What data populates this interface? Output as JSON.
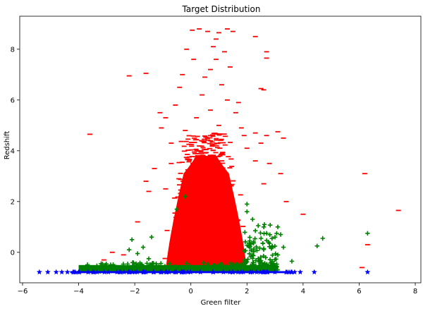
{
  "chart_data": {
    "type": "scatter",
    "title": "Target Distribution",
    "xlabel": "Green filter",
    "ylabel": "Redshift",
    "xlim": [
      -6.1,
      8.2
    ],
    "ylim": [
      -1.2,
      9.3
    ],
    "xticks": [
      -6,
      -4,
      -2,
      0,
      2,
      4,
      6,
      8
    ],
    "yticks": [
      0,
      2,
      4,
      6,
      8
    ],
    "grid": false,
    "series": [
      {
        "marker": "dash",
        "color": "#ff0000",
        "core_region": {
          "x_range": [
            -0.9,
            2.0
          ],
          "y_range": [
            -0.8,
            3.8
          ]
        },
        "points": [
          [
            -2.2,
            6.95
          ],
          [
            -1.6,
            7.05
          ],
          [
            -3.6,
            4.65
          ],
          [
            -1.1,
            5.5
          ],
          [
            -1.05,
            4.9
          ],
          [
            -1.6,
            2.8
          ],
          [
            -1.5,
            2.4
          ],
          [
            -2.8,
            0.0
          ],
          [
            -3.1,
            -0.3
          ],
          [
            -0.4,
            6.5
          ],
          [
            -0.3,
            7.0
          ],
          [
            -0.15,
            8.0
          ],
          [
            0.05,
            8.75
          ],
          [
            0.3,
            8.8
          ],
          [
            0.6,
            8.7
          ],
          [
            1.0,
            8.65
          ],
          [
            1.3,
            8.8
          ],
          [
            1.5,
            8.7
          ],
          [
            0.8,
            8.1
          ],
          [
            1.2,
            7.9
          ],
          [
            0.9,
            7.6
          ],
          [
            0.7,
            7.2
          ],
          [
            1.4,
            7.3
          ],
          [
            0.5,
            6.9
          ],
          [
            1.1,
            6.6
          ],
          [
            0.4,
            6.2
          ],
          [
            1.3,
            6.0
          ],
          [
            0.7,
            5.6
          ],
          [
            1.6,
            5.5
          ],
          [
            0.2,
            5.3
          ],
          [
            1.0,
            5.0
          ],
          [
            1.8,
            4.9
          ],
          [
            -0.2,
            4.8
          ],
          [
            1.9,
            4.6
          ],
          [
            2.3,
            4.7
          ],
          [
            2.7,
            4.6
          ],
          [
            3.1,
            4.75
          ],
          [
            3.3,
            4.5
          ],
          [
            2.5,
            4.3
          ],
          [
            2.8,
            3.5
          ],
          [
            3.2,
            3.1
          ],
          [
            2.6,
            2.7
          ],
          [
            3.4,
            2.0
          ],
          [
            4.0,
            1.5
          ],
          [
            6.3,
            0.3
          ],
          [
            6.2,
            3.1
          ],
          [
            7.4,
            1.65
          ],
          [
            6.1,
            -0.6
          ],
          [
            2.7,
            7.9
          ],
          [
            2.3,
            8.5
          ],
          [
            2.6,
            6.4
          ],
          [
            2.7,
            7.65
          ],
          [
            2.5,
            6.45
          ],
          [
            -0.7,
            3.5
          ],
          [
            -1.3,
            3.3
          ],
          [
            -0.9,
            2.5
          ],
          [
            -1.9,
            1.2
          ],
          [
            -2.4,
            -0.1
          ],
          [
            -0.55,
            5.8
          ],
          [
            -0.9,
            5.3
          ],
          [
            2.3,
            3.6
          ],
          [
            2.0,
            4.1
          ],
          [
            -0.7,
            4.3
          ],
          [
            1.7,
            5.9
          ],
          [
            0.1,
            7.6
          ],
          [
            0.9,
            8.4
          ]
        ]
      },
      {
        "marker": "plus",
        "color": "#008000",
        "core_region": {
          "x_range": [
            -4.0,
            3.1
          ],
          "y_range": [
            -0.75,
            -0.5
          ]
        },
        "points": [
          [
            -2.1,
            0.5
          ],
          [
            -2.2,
            0.1
          ],
          [
            -1.4,
            0.6
          ],
          [
            -1.7,
            0.2
          ],
          [
            -1.9,
            -0.05
          ],
          [
            -1.5,
            -0.25
          ],
          [
            -0.2,
            2.2
          ],
          [
            -0.5,
            1.7
          ],
          [
            2.0,
            1.9
          ],
          [
            2.0,
            1.6
          ],
          [
            2.2,
            1.3
          ],
          [
            2.4,
            1.05
          ],
          [
            2.3,
            0.85
          ],
          [
            2.7,
            0.75
          ],
          [
            2.5,
            0.55
          ],
          [
            2.8,
            0.35
          ],
          [
            3.0,
            0.6
          ],
          [
            3.2,
            0.7
          ],
          [
            3.1,
            1.0
          ],
          [
            3.3,
            0.2
          ],
          [
            3.1,
            -0.1
          ],
          [
            3.6,
            -0.35
          ],
          [
            4.5,
            0.25
          ],
          [
            4.7,
            0.55
          ],
          [
            6.3,
            0.75
          ],
          [
            2.1,
            0.2
          ],
          [
            2.2,
            -0.1
          ],
          [
            2.4,
            -0.25
          ],
          [
            2.6,
            0.15
          ],
          [
            2.9,
            -0.35
          ],
          [
            2.1,
            0.45
          ],
          [
            2.6,
            1.0
          ]
        ]
      },
      {
        "marker": "star",
        "color": "#0000ff",
        "core_region": {
          "x_range": [
            -4.3,
            3.6
          ],
          "y_range": [
            -0.82,
            -0.74
          ]
        },
        "points": [
          [
            -5.4,
            -0.78
          ],
          [
            -5.1,
            -0.78
          ],
          [
            -4.8,
            -0.78
          ],
          [
            -4.6,
            -0.78
          ],
          [
            -4.4,
            -0.78
          ],
          [
            -4.2,
            -0.78
          ],
          [
            -4.0,
            -0.78
          ],
          [
            3.7,
            -0.78
          ],
          [
            3.6,
            -0.78
          ],
          [
            4.4,
            -0.78
          ],
          [
            6.3,
            -0.78
          ],
          [
            3.9,
            -0.78
          ]
        ]
      }
    ]
  }
}
